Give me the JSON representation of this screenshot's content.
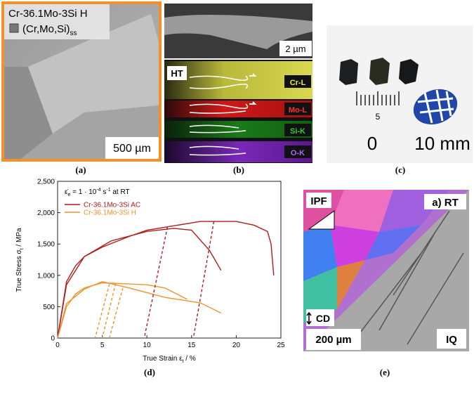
{
  "panel_a": {
    "title": "Cr-36.1Mo-3Si H",
    "legend": "(Cr,Mo,Si)",
    "legend_sub": "ss",
    "scale": "500 µm",
    "caption": "(a)"
  },
  "panel_b": {
    "scale": "2 µm",
    "tag": "HT",
    "maps": [
      "Cr-L",
      "Mo-L",
      "Si-K",
      "O-K"
    ],
    "caption": "(b)"
  },
  "panel_c": {
    "ruler_mid": "5",
    "ruler_start": "0",
    "ruler_end": "10 mm",
    "caption": "(c)"
  },
  "chart_data": {
    "type": "line",
    "caption": "(d)",
    "x_label": [
      "True Strain ε",
      "t",
      " / %"
    ],
    "y_label": [
      "True Stress σ",
      "t",
      " / MPa"
    ],
    "rate_label": [
      "ε̇",
      "e",
      " = 1 · 10",
      "-4",
      " s",
      "-1",
      " at RT"
    ],
    "xlim": [
      0,
      25
    ],
    "xticks": [
      0,
      5,
      10,
      15,
      20,
      25
    ],
    "ylim": [
      0,
      2500
    ],
    "yticks": [
      0,
      500,
      {
        "value": 1000,
        "label": "1,000"
      },
      {
        "value": 1500,
        "label": "1,500"
      },
      {
        "value": 2000,
        "label": "2,000"
      },
      {
        "value": 2500,
        "label": "2,500"
      }
    ],
    "series": [
      {
        "name": "Cr-36.1Mo-3Si AC",
        "color": "#b01c1c",
        "x": [
          0,
          1,
          2,
          3,
          5,
          8,
          10,
          13,
          16,
          20,
          22,
          23.5,
          23.9,
          24.2
        ],
        "values": [
          0,
          900,
          1150,
          1300,
          1450,
          1620,
          1720,
          1790,
          1860,
          1860,
          1800,
          1700,
          1500,
          1000
        ]
      },
      {
        "name": "Cr-36.1Mo-3Si H",
        "color": "#f0922a",
        "x": [
          0,
          1,
          2,
          3,
          5,
          7,
          10,
          12,
          14.5
        ],
        "values": [
          0,
          500,
          700,
          800,
          880,
          870,
          850,
          800,
          620
        ]
      }
    ],
    "extra_curves": [
      {
        "color": "#b01c1c",
        "x": [
          0,
          1,
          3,
          6,
          10,
          13,
          15,
          17,
          18.3
        ],
        "values": [
          0,
          850,
          1300,
          1550,
          1700,
          1750,
          1720,
          1400,
          1080
        ]
      },
      {
        "color": "#f0922a",
        "x": [
          0,
          1,
          3,
          5,
          8,
          12,
          16,
          18.3
        ],
        "values": [
          0,
          550,
          780,
          900,
          800,
          650,
          560,
          400
        ]
      }
    ],
    "unloading": [
      {
        "color": "#b01c1c",
        "x": [
          12.3,
          9.7
        ],
        "values": [
          1770,
          0
        ]
      },
      {
        "color": "#b01c1c",
        "x": [
          17.5,
          15.2
        ],
        "values": [
          1860,
          0
        ]
      },
      {
        "color": "#f0922a",
        "x": [
          5.8,
          4.2
        ],
        "values": [
          860,
          0
        ]
      },
      {
        "color": "#f0922a",
        "x": [
          6.5,
          5
        ],
        "values": [
          870,
          0
        ]
      },
      {
        "color": "#f0922a",
        "x": [
          7.3,
          5.8
        ],
        "values": [
          800,
          0
        ]
      }
    ]
  },
  "panel_e": {
    "tag_left": "IPF",
    "tag_right": "a) RT",
    "direction": "CD",
    "scale": "200 µm",
    "tag_bottom": "IQ",
    "caption": "(e)"
  }
}
